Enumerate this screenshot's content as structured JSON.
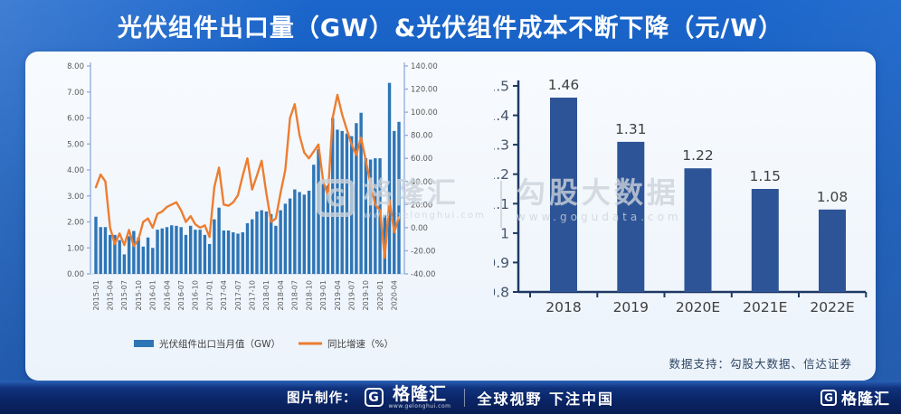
{
  "title": "光伏组件出口量（GW）&光伏组件成本不断下降（元/W）",
  "card": {
    "source_note": "数据支持：勾股大数据、信达证券"
  },
  "watermark": {
    "logo_glyph": "G",
    "brand": "格隆汇",
    "brand_url": "www.gelonghui.com",
    "partner": "勾股大数据",
    "partner_url": "www.gogudata.com"
  },
  "footer": {
    "made_by_label": "图片制作：",
    "logo_glyph": "G",
    "brand": "格隆汇",
    "brand_url": "www.gelonghui.com",
    "slogan": "全球视野 下注中国",
    "right_logo_glyph": "G",
    "right_brand": "格隆汇"
  },
  "colors": {
    "background_blue": "#1156b4",
    "title_text": "#ffffff",
    "card_bg": "#ecf3fb",
    "bar_primary": "#2e75b6",
    "line_orange": "#ed7d31",
    "bar_dark": "#2d5496",
    "axis_light": "#8faadc",
    "axis_dark": "#1f3864",
    "tick_text_gray": "#595959",
    "label_text_dark": "#404040",
    "ytick_text_navy": "#44546a",
    "baseline_gray": "#c9d4e4",
    "watermark_gray": "#ccd3db",
    "footer_bg": "#0a2464",
    "source_text": "#2f4662"
  },
  "chart_data": [
    {
      "type": "combo_bar_line",
      "x": [
        "2015-01",
        "2015-02",
        "2015-03",
        "2015-04",
        "2015-05",
        "2015-06",
        "2015-07",
        "2015-08",
        "2015-09",
        "2015-10",
        "2015-11",
        "2015-12",
        "2016-01",
        "2016-02",
        "2016-03",
        "2016-04",
        "2016-05",
        "2016-06",
        "2016-07",
        "2016-08",
        "2016-09",
        "2016-10",
        "2016-11",
        "2016-12",
        "2017-01",
        "2017-02",
        "2017-03",
        "2017-04",
        "2017-05",
        "2017-06",
        "2017-07",
        "2017-08",
        "2017-09",
        "2017-10",
        "2017-11",
        "2017-12",
        "2018-01",
        "2018-02",
        "2018-03",
        "2018-04",
        "2018-05",
        "2018-06",
        "2018-07",
        "2018-08",
        "2018-09",
        "2018-10",
        "2018-11",
        "2018-12",
        "2019-01",
        "2019-02",
        "2019-03",
        "2019-04",
        "2019-05",
        "2019-06",
        "2019-07",
        "2019-08",
        "2019-09",
        "2019-10",
        "2019-11",
        "2019-12",
        "2020-01",
        "2020-02",
        "2020-03",
        "2020-04",
        "2020-05"
      ],
      "x_label_every": 3,
      "series": [
        {
          "name": "光伏组件出口当月值（GW）",
          "type": "bar",
          "axis": "left",
          "values": [
            2.2,
            1.8,
            1.8,
            1.5,
            1.5,
            1.3,
            0.75,
            1.45,
            1.65,
            1.4,
            1.05,
            1.4,
            1.0,
            1.7,
            1.75,
            1.8,
            1.87,
            1.85,
            1.8,
            1.5,
            1.85,
            1.7,
            1.7,
            1.5,
            1.15,
            2.1,
            2.55,
            1.67,
            1.67,
            1.6,
            1.55,
            1.6,
            1.95,
            2.1,
            2.4,
            2.45,
            2.4,
            2.3,
            1.85,
            2.45,
            2.7,
            2.9,
            3.25,
            3.15,
            3.05,
            3.2,
            4.2,
            4.8,
            3.5,
            3.4,
            6.0,
            5.55,
            5.5,
            5.4,
            5.3,
            5.8,
            6.2,
            4.45,
            4.4,
            4.45,
            4.45,
            2.25,
            7.35,
            5.5,
            5.85
          ]
        },
        {
          "name": "同比增速（%）",
          "type": "line",
          "axis": "right",
          "values": [
            35,
            46,
            40,
            0,
            -14,
            -5,
            -15,
            -2,
            -16,
            -10,
            5,
            8,
            0,
            12,
            14,
            18,
            20,
            22,
            15,
            5,
            10,
            3,
            0,
            2,
            -8,
            35,
            52,
            20,
            19,
            22,
            28,
            45,
            60,
            33,
            45,
            58,
            30,
            5,
            8,
            30,
            50,
            95,
            107,
            80,
            65,
            60,
            66,
            72,
            40,
            28,
            95,
            115,
            98,
            85,
            72,
            63,
            78,
            58,
            38,
            20,
            15,
            -26,
            24,
            -4,
            9
          ]
        }
      ],
      "left_axis": {
        "min": 0,
        "max": 8,
        "step": 1,
        "decimals": 2
      },
      "right_axis": {
        "min": -40,
        "max": 140,
        "step": 20,
        "decimals": 2
      },
      "legend_position": "bottom"
    },
    {
      "type": "bar",
      "categories": [
        "2018",
        "2019",
        "2020E",
        "2021E",
        "2022E"
      ],
      "values": [
        1.46,
        1.31,
        1.22,
        1.15,
        1.08
      ],
      "data_labels": [
        "1.46",
        "1.31",
        "1.22",
        "1.15",
        "1.08"
      ],
      "ylim": [
        0.8,
        1.5
      ],
      "ytick_step": 0.1,
      "ylabel": "",
      "xlabel": ""
    }
  ]
}
